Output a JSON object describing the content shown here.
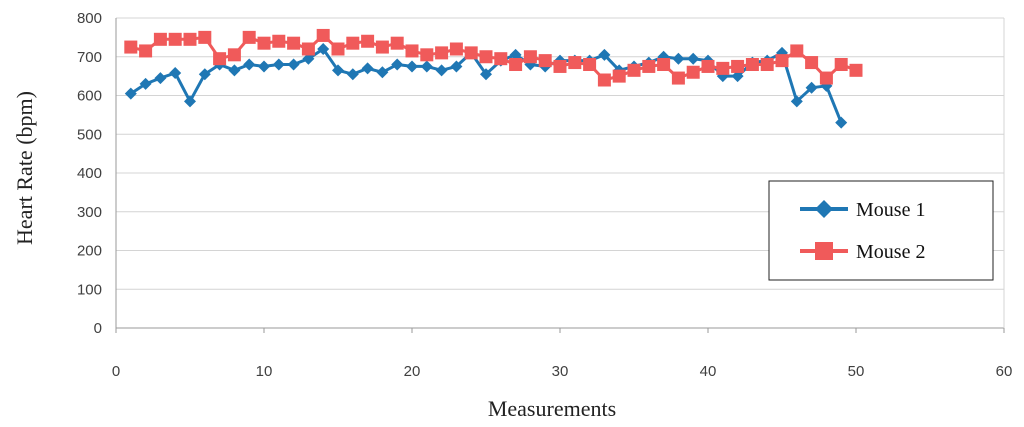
{
  "chart_data": {
    "type": "line",
    "title": "",
    "xlabel": "Measurements",
    "ylabel": "Heart Rate (bpm)",
    "xlim": [
      0,
      60
    ],
    "ylim": [
      0,
      800
    ],
    "xticks": [
      0,
      10,
      20,
      30,
      40,
      50,
      60
    ],
    "yticks": [
      0,
      100,
      200,
      300,
      400,
      500,
      600,
      700,
      800
    ],
    "grid": "horizontal",
    "legend_position": "right",
    "series": [
      {
        "name": "Mouse 1",
        "color": "#1f77b4",
        "marker": "diamond",
        "x": [
          1,
          2,
          3,
          4,
          5,
          6,
          7,
          8,
          9,
          10,
          11,
          12,
          13,
          14,
          15,
          16,
          17,
          18,
          19,
          20,
          21,
          22,
          23,
          24,
          25,
          26,
          27,
          28,
          29,
          30,
          31,
          32,
          33,
          34,
          35,
          36,
          37,
          38,
          39,
          40,
          41,
          42,
          43,
          44,
          45,
          46,
          47,
          48,
          49
        ],
        "y": [
          605,
          630,
          645,
          658,
          585,
          655,
          680,
          665,
          680,
          675,
          680,
          680,
          695,
          720,
          665,
          655,
          670,
          660,
          680,
          675,
          675,
          665,
          675,
          710,
          655,
          690,
          705,
          680,
          675,
          690,
          690,
          690,
          705,
          665,
          675,
          685,
          700,
          695,
          695,
          690,
          650,
          650,
          685,
          690,
          710,
          585,
          620,
          625,
          530
        ]
      },
      {
        "name": "Mouse 2",
        "color": "#f05a5a",
        "marker": "square",
        "x": [
          1,
          2,
          3,
          4,
          5,
          6,
          7,
          8,
          9,
          10,
          11,
          12,
          13,
          14,
          15,
          16,
          17,
          18,
          19,
          20,
          21,
          22,
          23,
          24,
          25,
          26,
          27,
          28,
          29,
          30,
          31,
          32,
          33,
          34,
          35,
          36,
          37,
          38,
          39,
          40,
          41,
          42,
          43,
          44,
          45,
          46,
          47,
          48,
          49,
          50
        ],
        "y": [
          725,
          715,
          745,
          745,
          745,
          750,
          695,
          705,
          750,
          735,
          740,
          735,
          720,
          755,
          720,
          735,
          740,
          725,
          735,
          715,
          705,
          710,
          720,
          710,
          700,
          695,
          680,
          700,
          690,
          675,
          685,
          680,
          640,
          650,
          665,
          675,
          680,
          645,
          660,
          675,
          670,
          675,
          680,
          680,
          690,
          715,
          685,
          645,
          680,
          665
        ]
      }
    ]
  }
}
